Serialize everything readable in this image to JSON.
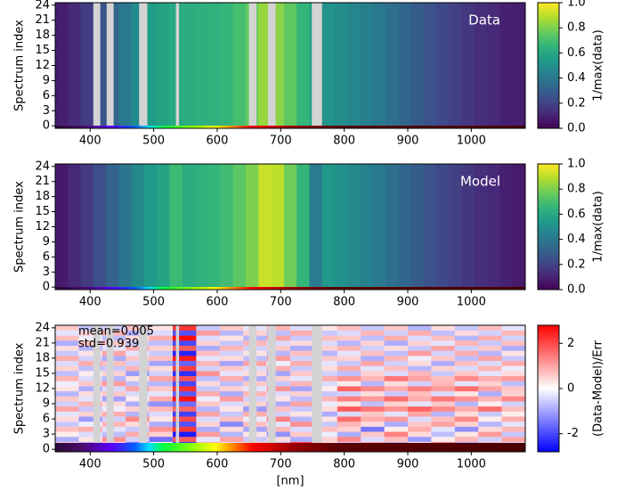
{
  "chart_data": [
    {
      "type": "heatmap",
      "annotation": "Data",
      "ylabel": "Spectrum index",
      "colormap": "viridis",
      "x": [
        355,
        375,
        395,
        415,
        435,
        455,
        475,
        495,
        515,
        535,
        555,
        575,
        595,
        615,
        635,
        655,
        675,
        695,
        715,
        735,
        755,
        775,
        795,
        815,
        835,
        855,
        875,
        895,
        915,
        935,
        955,
        975,
        995,
        1015,
        1035,
        1055,
        1075
      ],
      "values": [
        0.08,
        0.12,
        0.18,
        0.25,
        0.32,
        0.4,
        0.48,
        0.55,
        0.58,
        0.6,
        0.62,
        0.63,
        0.64,
        0.66,
        0.7,
        0.76,
        0.84,
        0.82,
        0.75,
        0.66,
        0.58,
        0.52,
        0.49,
        0.46,
        0.43,
        0.4,
        0.36,
        0.33,
        0.29,
        0.25,
        0.22,
        0.19,
        0.16,
        0.13,
        0.11,
        0.09,
        0.08
      ],
      "masked": [
        [
          405,
          416
        ],
        [
          426,
          437
        ],
        [
          477,
          490
        ],
        [
          535,
          540
        ],
        [
          650,
          662
        ],
        [
          680,
          692
        ],
        [
          749,
          765
        ]
      ],
      "xlim": [
        345,
        1085
      ],
      "ylim": [
        -0.5,
        24.5
      ],
      "xticks": [
        400,
        500,
        600,
        700,
        800,
        900,
        1000
      ],
      "yticks": [
        0,
        3,
        6,
        9,
        12,
        15,
        18,
        21,
        24
      ],
      "colorbar": {
        "label": "1/max(data)",
        "lim": [
          0,
          1
        ],
        "ticks": [
          {
            "value": 0,
            "label": "0.0"
          },
          {
            "value": 0.2,
            "label": "0.2"
          },
          {
            "value": 0.4,
            "label": "0.4"
          },
          {
            "value": 0.6,
            "label": "0.6"
          },
          {
            "value": 0.8,
            "label": "0.8"
          },
          {
            "value": 1,
            "label": "1.0"
          }
        ]
      }
    },
    {
      "type": "heatmap",
      "annotation": "Model",
      "ylabel": "Spectrum index",
      "colormap": "viridis",
      "x": [
        355,
        375,
        395,
        415,
        435,
        455,
        475,
        495,
        515,
        535,
        555,
        575,
        595,
        615,
        635,
        655,
        675,
        695,
        715,
        735,
        755,
        775,
        795,
        815,
        835,
        855,
        875,
        895,
        915,
        935,
        955,
        975,
        995,
        1015,
        1035,
        1055,
        1075
      ],
      "values": [
        0.07,
        0.11,
        0.17,
        0.24,
        0.31,
        0.39,
        0.47,
        0.54,
        0.58,
        0.68,
        0.62,
        0.64,
        0.66,
        0.69,
        0.74,
        0.8,
        0.92,
        0.9,
        0.78,
        0.66,
        0.42,
        0.53,
        0.5,
        0.47,
        0.44,
        0.4,
        0.36,
        0.33,
        0.29,
        0.25,
        0.22,
        0.19,
        0.16,
        0.13,
        0.11,
        0.09,
        0.07
      ],
      "xlim": [
        345,
        1085
      ],
      "ylim": [
        -0.5,
        24.5
      ],
      "xticks": [
        400,
        500,
        600,
        700,
        800,
        900,
        1000
      ],
      "yticks": [
        0,
        3,
        6,
        9,
        12,
        15,
        18,
        21,
        24
      ],
      "colorbar": {
        "label": "1/max(data)",
        "lim": [
          0,
          1
        ],
        "ticks": [
          {
            "value": 0,
            "label": "0.0"
          },
          {
            "value": 0.2,
            "label": "0.2"
          },
          {
            "value": 0.4,
            "label": "0.4"
          },
          {
            "value": 0.6,
            "label": "0.6"
          },
          {
            "value": 0.8,
            "label": "0.8"
          },
          {
            "value": 1,
            "label": "1.0"
          }
        ]
      }
    },
    {
      "type": "residual",
      "annotations": [
        "mean=0.005",
        "std=0.939"
      ],
      "ylabel": "Spectrum index",
      "xlabel": "[nm]",
      "colormap": "bwr",
      "bins": [
        345,
        382,
        419,
        456,
        493,
        530,
        567,
        604,
        641,
        678,
        715,
        752,
        789,
        826,
        863,
        900,
        937,
        974,
        1011,
        1048,
        1085
      ],
      "z": [
        [
          -0.4,
          0.6,
          -1.1,
          0.3,
          0.9,
          2.4,
          -0.5,
          0.2,
          -0.8,
          1.6,
          0.4,
          -0.3,
          0.7,
          -1.3,
          0.5,
          0.8,
          -0.6,
          1.1,
          -0.2,
          0.4
        ],
        [
          0.5,
          -0.8,
          0.4,
          -1.4,
          0.2,
          -2.2,
          0.9,
          -0.4,
          0.6,
          -0.7,
          1.9,
          0.3,
          -0.5,
          0.9,
          -0.8,
          0.3,
          1.2,
          -0.9,
          0.6,
          -0.4
        ],
        [
          -0.9,
          0.3,
          1.2,
          -0.5,
          -1.6,
          1.8,
          -0.3,
          1.0,
          -0.6,
          0.4,
          -0.9,
          0.5,
          1.3,
          -0.4,
          0.7,
          -1.1,
          0.2,
          0.8,
          -0.5,
          1.0
        ],
        [
          0.2,
          -0.4,
          -0.7,
          0.9,
          0.5,
          -2.5,
          1.1,
          -0.8,
          0.3,
          -1.2,
          0.6,
          -0.2,
          -0.9,
          0.6,
          1.4,
          0.4,
          -0.7,
          0.3,
          1.1,
          -0.6
        ],
        [
          0.7,
          0.9,
          -0.3,
          -0.6,
          1.2,
          2.2,
          -0.9,
          0.4,
          -1.0,
          0.8,
          -0.4,
          0.7,
          0.5,
          -1.5,
          0.2,
          0.9,
          -0.3,
          -1.2,
          0.4,
          0.8
        ],
        [
          -0.6,
          -0.2,
          0.8,
          0.4,
          -0.9,
          -1.9,
          0.5,
          -1.3,
          0.7,
          -0.3,
          1.2,
          -0.6,
          0.8,
          0.4,
          -0.9,
          0.6,
          1.0,
          0.5,
          -0.8,
          -0.3
        ],
        [
          0.4,
          -1.1,
          -0.5,
          1.3,
          0.3,
          2.0,
          -0.4,
          0.7,
          -0.2,
          1.4,
          -0.8,
          0.3,
          1.6,
          0.9,
          1.1,
          -0.4,
          0.7,
          1.3,
          0.2,
          0.9
        ],
        [
          -0.3,
          0.5,
          0.9,
          -0.8,
          -0.4,
          -2.1,
          1.0,
          -0.6,
          0.9,
          -0.5,
          0.3,
          -0.9,
          -0.4,
          0.6,
          -0.3,
          1.0,
          -0.8,
          0.4,
          -0.6,
          0.2
        ],
        [
          1.0,
          -0.6,
          -0.2,
          0.5,
          0.8,
          1.7,
          -0.8,
          0.3,
          -1.1,
          0.7,
          -0.6,
          0.4,
          1.8,
          1.5,
          1.2,
          1.7,
          1.3,
          0.9,
          1.6,
          0.7
        ],
        [
          -0.5,
          0.8,
          0.4,
          -0.9,
          -1.2,
          -1.6,
          0.6,
          -0.4,
          0.5,
          -0.9,
          1.0,
          -0.2,
          0.3,
          -0.7,
          0.5,
          -0.3,
          0.6,
          -0.8,
          0.2,
          -0.5
        ],
        [
          0.6,
          -0.3,
          -1.0,
          0.2,
          0.9,
          2.6,
          -0.2,
          1.1,
          -0.5,
          0.3,
          -0.7,
          0.8,
          1.4,
          1.1,
          1.6,
          0.9,
          1.5,
          1.2,
          0.8,
          1.3
        ],
        [
          -0.8,
          0.4,
          0.6,
          -0.4,
          -0.3,
          -1.8,
          0.9,
          -0.9,
          0.8,
          -0.4,
          0.5,
          -0.6,
          -0.5,
          0.4,
          -0.6,
          0.7,
          -0.4,
          0.3,
          -0.9,
          0.5
        ],
        [
          0.3,
          -0.9,
          -0.4,
          1.0,
          0.6,
          2.3,
          -0.6,
          0.5,
          -0.3,
          1.2,
          -1.0,
          0.2,
          1.7,
          1.3,
          0.9,
          1.4,
          1.1,
          1.6,
          1.0,
          0.6
        ],
        [
          -0.2,
          0.6,
          1.1,
          -0.7,
          -0.8,
          -2.0,
          0.4,
          -0.7,
          0.6,
          -0.6,
          0.8,
          -0.4,
          0.2,
          -0.8,
          0.4,
          -0.5,
          0.8,
          -0.3,
          0.5,
          -0.7
        ],
        [
          0.8,
          -0.4,
          -0.8,
          0.3,
          1.0,
          1.9,
          -0.7,
          0.9,
          -0.9,
          0.5,
          -0.3,
          0.9,
          1.2,
          0.8,
          1.5,
          1.0,
          0.7,
          1.3,
          0.9,
          1.1
        ],
        [
          -0.7,
          0.2,
          0.5,
          -1.1,
          -0.5,
          -2.3,
          1.2,
          -0.3,
          0.4,
          -1.0,
          0.6,
          -0.5,
          -0.7,
          0.5,
          -0.4,
          0.8,
          -0.6,
          0.6,
          -0.3,
          0.4
        ],
        [
          0.5,
          -0.7,
          -0.6,
          0.8,
          0.4,
          2.1,
          -0.5,
          0.6,
          -0.4,
          0.9,
          -0.6,
          0.4,
          0.9,
          -0.3,
          0.7,
          -0.8,
          0.5,
          -0.4,
          0.8,
          -0.2
        ],
        [
          -0.4,
          0.9,
          0.7,
          -0.5,
          -1.0,
          -1.7,
          0.8,
          -1.0,
          1.0,
          -0.2,
          0.9,
          -0.3,
          -0.6,
          1.0,
          -0.5,
          0.4,
          -0.9,
          0.7,
          -0.4,
          0.9
        ],
        [
          0.9,
          -0.5,
          -0.9,
          0.6,
          0.7,
          2.5,
          -0.3,
          0.4,
          -0.7,
          1.1,
          -0.5,
          0.6,
          0.5,
          -0.9,
          0.8,
          -0.2,
          0.6,
          -0.7,
          1.0,
          -0.6
        ],
        [
          -0.6,
          0.3,
          1.0,
          -0.3,
          -0.6,
          -2.4,
          0.7,
          -0.5,
          0.3,
          -0.8,
          0.7,
          -0.8,
          -0.3,
          0.7,
          -0.7,
          1.1,
          -0.5,
          0.9,
          -0.8,
          0.3
        ],
        [
          0.4,
          -0.8,
          -0.3,
          0.9,
          0.5,
          1.8,
          -0.9,
          0.8,
          -0.5,
          0.6,
          -0.9,
          0.5,
          0.8,
          -0.5,
          0.4,
          -0.6,
          1.0,
          -0.5,
          0.6,
          -0.9
        ],
        [
          -0.9,
          0.7,
          0.6,
          -0.6,
          -0.7,
          -2.0,
          0.5,
          -0.6,
          0.8,
          -0.4,
          0.4,
          -0.4,
          -0.8,
          0.5,
          -0.9,
          0.5,
          -0.3,
          0.8,
          -0.6,
          0.7
        ],
        [
          0.7,
          -0.2,
          -0.7,
          0.4,
          0.9,
          2.7,
          -0.4,
          0.3,
          -0.8,
          1.0,
          -0.6,
          0.7,
          0.6,
          -0.7,
          0.9,
          -0.4,
          0.7,
          -0.8,
          0.9,
          -0.5
        ],
        [
          -0.3,
          0.5,
          0.8,
          -0.9,
          -0.4,
          -1.9,
          1.1,
          -0.8,
          0.5,
          -0.7,
          0.9,
          -0.6,
          -0.4,
          0.8,
          -0.5,
          0.9,
          -0.7,
          0.4,
          -0.5,
          0.8
        ],
        [
          0.6,
          -0.6,
          -0.5,
          0.7,
          0.3,
          2.2,
          -0.6,
          0.6,
          -0.3,
          0.8,
          -0.4,
          0.3,
          0.7,
          -0.6,
          0.6,
          -0.8,
          0.4,
          -0.6,
          0.7,
          -0.3
        ]
      ],
      "masked": [
        [
          405,
          416
        ],
        [
          426,
          437
        ],
        [
          477,
          490
        ],
        [
          535,
          540
        ],
        [
          650,
          662
        ],
        [
          680,
          692
        ],
        [
          749,
          765
        ]
      ],
      "xlim": [
        345,
        1085
      ],
      "ylim": [
        -0.5,
        24.5
      ],
      "xticks": [
        400,
        500,
        600,
        700,
        800,
        900,
        1000
      ],
      "yticks": [
        0,
        3,
        6,
        9,
        12,
        15,
        18,
        21,
        24
      ],
      "colorbar": {
        "label": "(Data-Model)/Err",
        "lim": [
          -2.8,
          2.8
        ],
        "ticks": [
          -2,
          0,
          2
        ]
      }
    }
  ]
}
